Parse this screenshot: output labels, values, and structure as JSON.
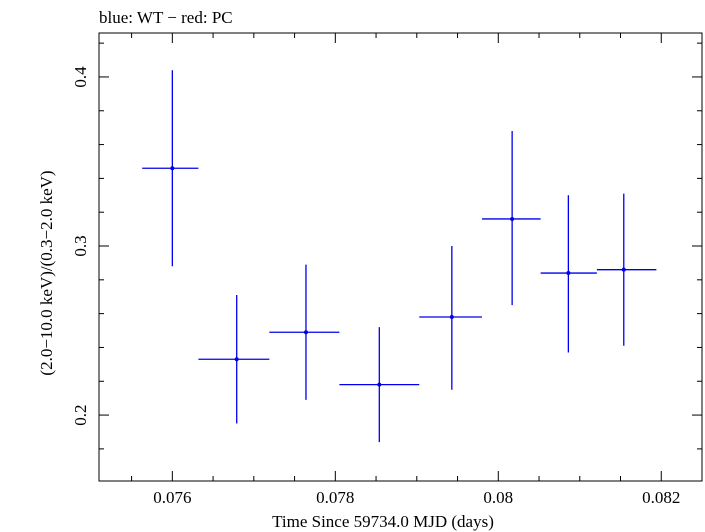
{
  "chart_data": {
    "type": "scatter",
    "title": "blue: WT − red: PC",
    "xlabel": "Time Since 59734.0 MJD (days)",
    "ylabel": "(2.0−10.0 keV)/(0.3−2.0 keV)",
    "xlim": [
      0.0751,
      0.0825
    ],
    "ylim": [
      0.161,
      0.426
    ],
    "x_ticks": [
      0.076,
      0.078,
      0.08,
      0.082
    ],
    "x_tick_labels": [
      "0.076",
      "0.078",
      "0.08",
      "0.082"
    ],
    "y_ticks": [
      0.2,
      0.3,
      0.4
    ],
    "y_tick_labels": [
      "0.2",
      "0.3",
      "0.4"
    ],
    "grid": false,
    "series": [
      {
        "color": "#0000ee",
        "points": [
          {
            "x": 0.076,
            "xerr_lo": 0.07563,
            "xerr_hi": 0.07632,
            "y": 0.346,
            "yerr_lo": 0.288,
            "yerr_hi": 0.404
          },
          {
            "x": 0.07679,
            "xerr_lo": 0.07632,
            "xerr_hi": 0.07719,
            "y": 0.233,
            "yerr_lo": 0.195,
            "yerr_hi": 0.271
          },
          {
            "x": 0.07764,
            "xerr_lo": 0.07719,
            "xerr_hi": 0.07805,
            "y": 0.249,
            "yerr_lo": 0.209,
            "yerr_hi": 0.289
          },
          {
            "x": 0.07854,
            "xerr_lo": 0.07805,
            "xerr_hi": 0.07903,
            "y": 0.218,
            "yerr_lo": 0.184,
            "yerr_hi": 0.252
          },
          {
            "x": 0.07943,
            "xerr_lo": 0.07903,
            "xerr_hi": 0.0798,
            "y": 0.258,
            "yerr_lo": 0.215,
            "yerr_hi": 0.3
          },
          {
            "x": 0.08017,
            "xerr_lo": 0.0798,
            "xerr_hi": 0.08052,
            "y": 0.316,
            "yerr_lo": 0.265,
            "yerr_hi": 0.368
          },
          {
            "x": 0.08086,
            "xerr_lo": 0.08052,
            "xerr_hi": 0.08121,
            "y": 0.284,
            "yerr_lo": 0.237,
            "yerr_hi": 0.33
          },
          {
            "x": 0.08154,
            "xerr_lo": 0.08121,
            "xerr_hi": 0.08194,
            "y": 0.286,
            "yerr_lo": 0.241,
            "yerr_hi": 0.331
          }
        ]
      }
    ]
  }
}
